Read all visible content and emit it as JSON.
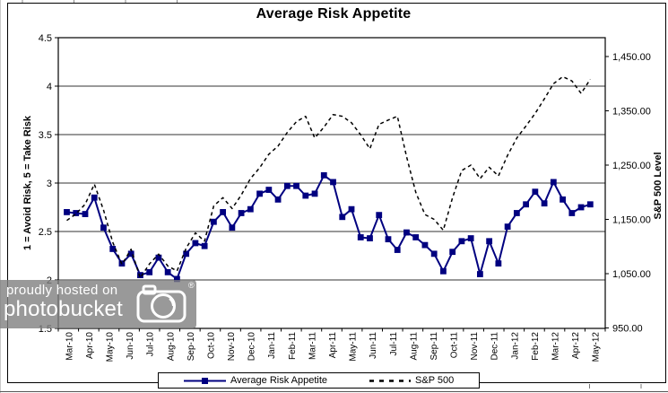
{
  "title": "Average Risk Appetite",
  "colors": {
    "risk_series": "#000080",
    "sp500_series": "#000000",
    "gridline": "#333333",
    "watermark_bg": "#808080",
    "watermark_text": "#ffffff"
  },
  "watermark": {
    "line1": "proudly hosted on",
    "line2": "photobucket",
    "registered_mark": "®"
  },
  "chart_data": {
    "type": "line",
    "title": "Average Risk Appetite",
    "xlabel": "",
    "y_left": {
      "label": "1 = Avoid Risk, 5 = Take Risk",
      "range": [
        1.5,
        4.5
      ],
      "tick_step": 0.5,
      "tick_labels": [
        "4.5",
        "4",
        "3.5",
        "3",
        "2.5",
        "2",
        "1.5"
      ]
    },
    "y_right": {
      "label": "S&P 500 Level",
      "range": [
        950,
        1450
      ],
      "tick_step": 100,
      "tick_labels": [
        "1,450.00",
        "1,350.00",
        "1,250.00",
        "1,150.00",
        "1,050.00",
        "950.00"
      ]
    },
    "grid": "horizontal",
    "legend_position": "bottom",
    "x_tick_labels": [
      "Mar-10",
      "Apr-10",
      "May-10",
      "Jun-10",
      "Jul-10",
      "Aug-10",
      "Sep-10",
      "Oct-10",
      "Nov-10",
      "Dec-10",
      "Jan-11",
      "Feb-11",
      "Mar-11",
      "Apr-11",
      "May-11",
      "Jun-11",
      "Jul-11",
      "Aug-11",
      "Sep-11",
      "Oct-11",
      "Nov-11",
      "Dec-11",
      "Jan-12",
      "Feb-12",
      "Mar-12",
      "Apr-12",
      "May-12"
    ],
    "series": [
      {
        "name": "Average Risk Appetite",
        "axis": "left",
        "color": "#000080",
        "line_style": "solid",
        "marker": "square",
        "values": [
          2.7,
          2.69,
          2.68,
          2.85,
          2.54,
          2.32,
          2.17,
          2.27,
          2.05,
          2.08,
          2.23,
          2.08,
          2.01,
          2.27,
          2.38,
          2.35,
          2.6,
          2.7,
          2.54,
          2.69,
          2.73,
          2.89,
          2.93,
          2.83,
          2.97,
          2.97,
          2.87,
          2.89,
          3.08,
          3.01,
          2.65,
          2.73,
          2.44,
          2.43,
          2.67,
          2.42,
          2.31,
          2.49,
          2.44,
          2.36,
          2.27,
          2.09,
          2.29,
          2.4,
          2.43,
          2.06,
          2.4,
          2.17,
          2.55,
          2.69,
          2.78,
          2.91,
          2.79,
          3.01,
          2.83,
          2.69,
          2.75,
          2.78
        ]
      },
      {
        "name": "S&P 500",
        "axis": "right",
        "color": "#000000",
        "line_style": "dashed",
        "marker": "none",
        "values": [
          1148,
          1160,
          1178,
          1215,
          1167,
          1108,
          1067,
          1095,
          1042,
          1068,
          1086,
          1064,
          1055,
          1097,
          1125,
          1110,
          1175,
          1190,
          1170,
          1195,
          1225,
          1245,
          1270,
          1285,
          1310,
          1330,
          1340,
          1300,
          1320,
          1343,
          1340,
          1328,
          1306,
          1280,
          1325,
          1333,
          1340,
          1265,
          1200,
          1159,
          1150,
          1130,
          1190,
          1240,
          1250,
          1225,
          1246,
          1230,
          1268,
          1300,
          1322,
          1345,
          1372,
          1400,
          1413,
          1405,
          1382,
          1408
        ]
      }
    ]
  }
}
